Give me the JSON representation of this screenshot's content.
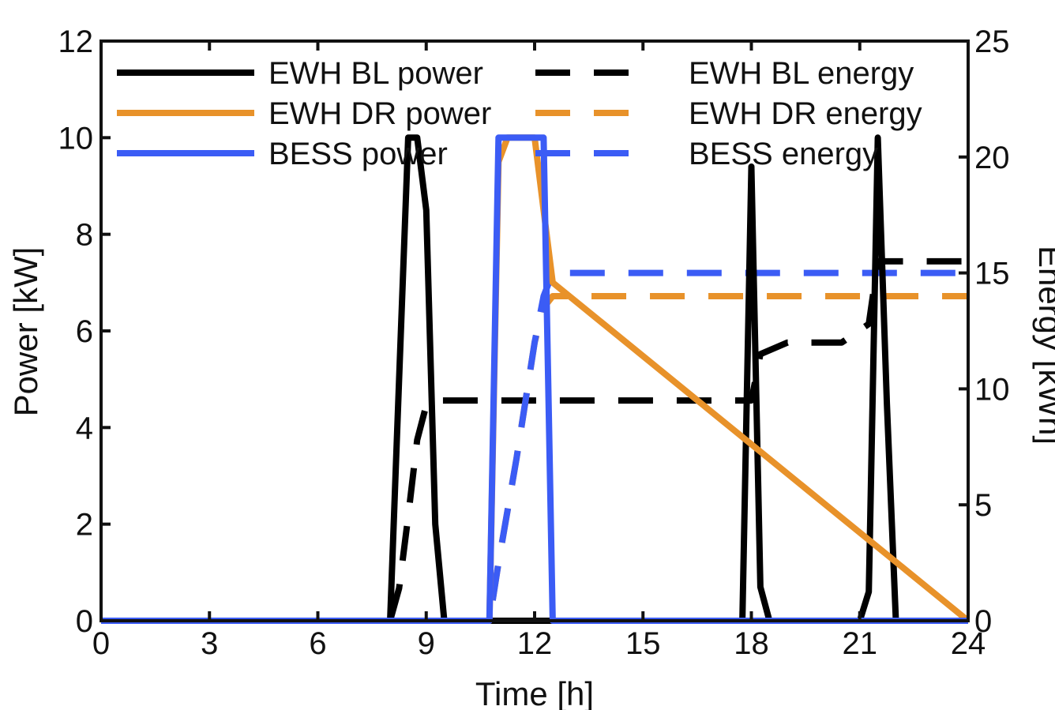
{
  "chart_data": {
    "type": "line",
    "xlabel": "Time [h]",
    "ylabel_left": "Power [kW]",
    "ylabel_right": "Energy [kWh]",
    "xlim": [
      0,
      24
    ],
    "ylim_left": [
      0,
      12
    ],
    "ylim_right": [
      0,
      25
    ],
    "xticks": [
      0,
      3,
      6,
      9,
      12,
      15,
      18,
      21,
      24
    ],
    "yticks_left": [
      0,
      2,
      4,
      6,
      8,
      10,
      12
    ],
    "yticks_right": [
      0,
      5,
      10,
      15,
      20,
      25
    ],
    "grid": false,
    "legend_position": "top",
    "colors": {
      "ewh_bl": "#000000",
      "ewh_dr": "#e8922a",
      "bess": "#3b5cf5"
    },
    "series": [
      {
        "name": "EWH BL power",
        "axis": "left",
        "style": "solid",
        "color": "#000000",
        "x": [
          0,
          8,
          8.25,
          8.5,
          8.75,
          9.0,
          9.25,
          9.5,
          10.75,
          12.25,
          17.75,
          18,
          18.25,
          18.5,
          21,
          21.25,
          21.5,
          21.75,
          22,
          24
        ],
        "y": [
          0,
          0,
          5.0,
          10,
          10,
          8.5,
          2.0,
          0,
          0,
          0,
          0,
          9.4,
          0.7,
          0,
          0,
          0.6,
          10,
          4.5,
          0,
          0
        ]
      },
      {
        "name": "EWH BL energy",
        "axis": "right",
        "style": "dashed",
        "color": "#000000",
        "x": [
          0,
          8,
          8.25,
          8.5,
          8.75,
          9.0,
          9.25,
          18,
          18.25,
          19,
          20.5,
          21.25,
          21.5,
          24
        ],
        "y": [
          0,
          0,
          1.4,
          4.5,
          7.8,
          9.3,
          9.5,
          9.5,
          11.5,
          12.0,
          12.0,
          12.8,
          15.5,
          15.5
        ]
      },
      {
        "name": "EWH DR power",
        "axis": "left",
        "style": "solid",
        "color": "#e8922a",
        "x": [
          0,
          10.75,
          11.0,
          11.25,
          11.5,
          12.0,
          12.25,
          12.5,
          24
        ],
        "y": [
          0,
          0,
          9.5,
          10,
          10,
          10,
          8.5,
          7.0,
          0
        ]
      },
      {
        "name": "EWH DR energy",
        "axis": "right",
        "style": "dashed",
        "color": "#e8922a",
        "x": [
          0,
          10.75,
          11.0,
          11.5,
          12.0,
          12.25,
          12.5,
          24
        ],
        "y": [
          0,
          0,
          2.5,
          7.0,
          12.0,
          13.5,
          14.0,
          14.0
        ]
      },
      {
        "name": "BESS power",
        "axis": "left",
        "style": "solid",
        "color": "#3b5cf5",
        "x": [
          0,
          10.75,
          11.0,
          12.25,
          12.5,
          24
        ],
        "y": [
          0,
          0,
          10,
          10,
          0,
          0
        ]
      },
      {
        "name": "BESS energy",
        "axis": "right",
        "style": "dashed",
        "color": "#3b5cf5",
        "x": [
          0,
          10.75,
          11.0,
          11.5,
          12.0,
          12.25,
          12.5,
          24
        ],
        "y": [
          0,
          0,
          2.5,
          7.0,
          12.0,
          14.0,
          15.0,
          15.0
        ]
      }
    ]
  }
}
